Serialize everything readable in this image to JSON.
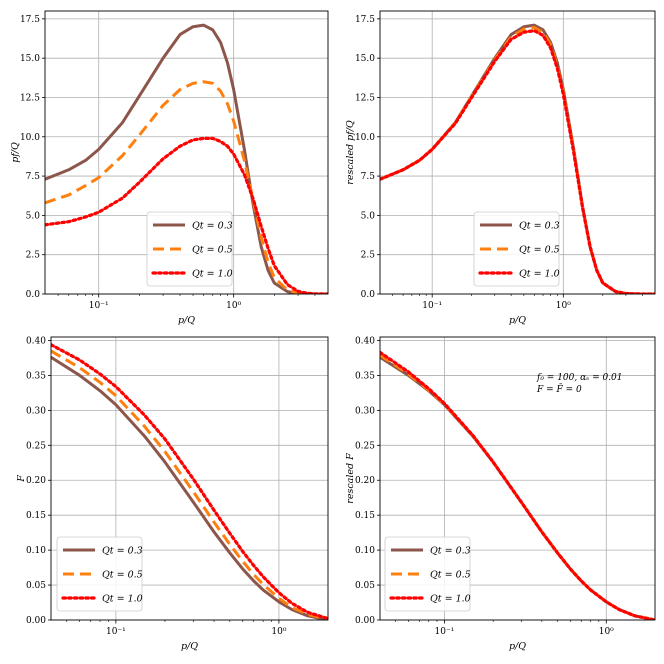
{
  "chart_data": [
    {
      "type": "line",
      "xlabel": "p/Q",
      "ylabel": "pf/Q",
      "xscale": "log",
      "xlim": [
        0.04,
        5.0
      ],
      "ylim": [
        0,
        18.0
      ],
      "yticks": [
        "0.0",
        "2.5",
        "5.0",
        "7.5",
        "10.0",
        "12.5",
        "15.0",
        "17.5"
      ],
      "ytick_values": [
        0,
        2.5,
        5,
        7.5,
        10,
        12.5,
        15,
        17.5
      ],
      "xticks": [
        {
          "value": 0.1,
          "label": "10⁻¹"
        },
        {
          "value": 1,
          "label": "10⁰"
        }
      ],
      "grid": true,
      "legend_position": "lower center",
      "x": [
        0.04,
        0.06,
        0.08,
        0.1,
        0.15,
        0.2,
        0.3,
        0.4,
        0.5,
        0.6,
        0.7,
        0.8,
        0.9,
        1.0,
        1.2,
        1.4,
        1.6,
        1.8,
        2.0,
        2.5,
        3.0,
        3.5,
        4.0,
        5.0
      ],
      "series": [
        {
          "name": "Qt = 0.3",
          "color": "#8c564b",
          "style": "solid",
          "values": [
            7.3,
            7.9,
            8.5,
            9.2,
            10.9,
            12.6,
            15.0,
            16.5,
            17.0,
            17.1,
            16.8,
            16.0,
            14.7,
            13.0,
            9.2,
            5.6,
            3.0,
            1.5,
            0.7,
            0.15,
            0.03,
            0.01,
            0.0,
            0.0
          ]
        },
        {
          "name": "Qt = 0.5",
          "color": "#ff7f0e",
          "style": "dashed",
          "values": [
            5.8,
            6.3,
            6.9,
            7.4,
            8.8,
            10.1,
            12.0,
            13.0,
            13.4,
            13.5,
            13.4,
            12.9,
            12.1,
            11.0,
            8.5,
            5.9,
            3.6,
            2.0,
            1.05,
            0.25,
            0.06,
            0.02,
            0.0,
            0.0
          ]
        },
        {
          "name": "Qt = 1.0",
          "color": "#ff0000",
          "style": "dotted",
          "values": [
            4.4,
            4.6,
            4.9,
            5.2,
            6.1,
            7.1,
            8.6,
            9.4,
            9.8,
            9.9,
            9.9,
            9.7,
            9.4,
            8.9,
            7.6,
            6.0,
            4.3,
            2.9,
            1.8,
            0.6,
            0.17,
            0.05,
            0.01,
            0.0
          ]
        }
      ]
    },
    {
      "type": "line",
      "xlabel": "p/Q",
      "ylabel": "rescaled pf/Q",
      "xscale": "log",
      "xlim": [
        0.04,
        5.0
      ],
      "ylim": [
        0,
        18.0
      ],
      "yticks": [
        "0.0",
        "2.5",
        "5.0",
        "7.5",
        "10.0",
        "12.5",
        "15.0",
        "17.5"
      ],
      "ytick_values": [
        0,
        2.5,
        5,
        7.5,
        10,
        12.5,
        15,
        17.5
      ],
      "xticks": [
        {
          "value": 0.1,
          "label": "10⁻¹"
        },
        {
          "value": 1,
          "label": "10⁰"
        }
      ],
      "grid": true,
      "legend_position": "lower center",
      "x": [
        0.04,
        0.06,
        0.08,
        0.1,
        0.15,
        0.2,
        0.3,
        0.4,
        0.5,
        0.6,
        0.7,
        0.8,
        0.9,
        1.0,
        1.2,
        1.4,
        1.6,
        1.8,
        2.0,
        2.5,
        3.0,
        3.5,
        4.0,
        5.0
      ],
      "series": [
        {
          "name": "Qt = 0.3",
          "color": "#8c564b",
          "style": "solid",
          "values": [
            7.3,
            7.9,
            8.5,
            9.2,
            10.9,
            12.6,
            15.0,
            16.5,
            17.0,
            17.1,
            16.8,
            16.0,
            14.7,
            13.0,
            9.2,
            5.6,
            3.0,
            1.5,
            0.7,
            0.15,
            0.03,
            0.01,
            0.0,
            0.0
          ]
        },
        {
          "name": "Qt = 0.5",
          "color": "#ff7f0e",
          "style": "dashed",
          "values": [
            7.3,
            7.9,
            8.5,
            9.2,
            10.9,
            12.55,
            14.9,
            16.35,
            16.85,
            16.95,
            16.65,
            15.85,
            14.5,
            12.85,
            9.1,
            5.55,
            3.0,
            1.5,
            0.7,
            0.15,
            0.03,
            0.01,
            0.0,
            0.0
          ]
        },
        {
          "name": "Qt = 1.0",
          "color": "#ff0000",
          "style": "dotted",
          "values": [
            7.3,
            7.9,
            8.5,
            9.2,
            10.85,
            12.5,
            14.8,
            16.2,
            16.65,
            16.75,
            16.45,
            15.65,
            14.35,
            12.7,
            9.0,
            5.5,
            3.0,
            1.5,
            0.7,
            0.16,
            0.03,
            0.01,
            0.0,
            0.0
          ]
        }
      ]
    },
    {
      "type": "line",
      "xlabel": "p/Q",
      "ylabel": "F",
      "xscale": "log",
      "xlim": [
        0.04,
        2.0
      ],
      "ylim": [
        0,
        0.405
      ],
      "yticks": [
        "0.00",
        "0.05",
        "0.10",
        "0.15",
        "0.20",
        "0.25",
        "0.30",
        "0.35",
        "0.40"
      ],
      "ytick_values": [
        0,
        0.05,
        0.1,
        0.15,
        0.2,
        0.25,
        0.3,
        0.35,
        0.4
      ],
      "xticks": [
        {
          "value": 0.1,
          "label": "10⁻¹"
        },
        {
          "value": 1,
          "label": "10⁰"
        }
      ],
      "grid": true,
      "legend_position": "lower left",
      "x": [
        0.04,
        0.06,
        0.08,
        0.1,
        0.15,
        0.2,
        0.3,
        0.4,
        0.5,
        0.6,
        0.7,
        0.8,
        1.0,
        1.2,
        1.5,
        2.0
      ],
      "series": [
        {
          "name": "Qt = 0.3",
          "color": "#8c564b",
          "style": "solid",
          "values": [
            0.376,
            0.35,
            0.328,
            0.308,
            0.263,
            0.226,
            0.168,
            0.126,
            0.096,
            0.073,
            0.056,
            0.043,
            0.026,
            0.015,
            0.006,
            0.0
          ]
        },
        {
          "name": "Qt = 0.5",
          "color": "#ff7f0e",
          "style": "dashed",
          "values": [
            0.385,
            0.361,
            0.34,
            0.321,
            0.277,
            0.241,
            0.183,
            0.14,
            0.108,
            0.084,
            0.065,
            0.051,
            0.031,
            0.018,
            0.008,
            0.001
          ]
        },
        {
          "name": "Qt = 1.0",
          "color": "#ff0000",
          "style": "dotted",
          "values": [
            0.394,
            0.372,
            0.352,
            0.334,
            0.293,
            0.259,
            0.201,
            0.157,
            0.124,
            0.098,
            0.078,
            0.062,
            0.039,
            0.024,
            0.011,
            0.002
          ]
        }
      ]
    },
    {
      "type": "line",
      "xlabel": "p/Q",
      "ylabel": "rescaled F",
      "xscale": "log",
      "xlim": [
        0.04,
        2.0
      ],
      "ylim": [
        0,
        0.405
      ],
      "yticks": [
        "0.00",
        "0.05",
        "0.10",
        "0.15",
        "0.20",
        "0.25",
        "0.30",
        "0.35",
        "0.40"
      ],
      "ytick_values": [
        0,
        0.05,
        0.1,
        0.15,
        0.2,
        0.25,
        0.3,
        0.35,
        0.4
      ],
      "xticks": [
        {
          "value": 0.1,
          "label": "10⁻¹"
        },
        {
          "value": 1,
          "label": "10⁰"
        }
      ],
      "grid": true,
      "legend_position": "lower left",
      "annotation": [
        "f₀ = 100, αₛ = 0.01",
        "F = F̄ = 0"
      ],
      "x": [
        0.04,
        0.06,
        0.08,
        0.1,
        0.15,
        0.2,
        0.3,
        0.4,
        0.5,
        0.6,
        0.7,
        0.8,
        1.0,
        1.2,
        1.5,
        2.0
      ],
      "series": [
        {
          "name": "Qt = 0.3",
          "color": "#8c564b",
          "style": "solid",
          "values": [
            0.376,
            0.35,
            0.328,
            0.308,
            0.263,
            0.226,
            0.168,
            0.126,
            0.096,
            0.073,
            0.056,
            0.043,
            0.026,
            0.015,
            0.006,
            0.0
          ]
        },
        {
          "name": "Qt = 0.5",
          "color": "#ff7f0e",
          "style": "dashed",
          "values": [
            0.379,
            0.352,
            0.329,
            0.309,
            0.264,
            0.226,
            0.168,
            0.126,
            0.096,
            0.073,
            0.056,
            0.043,
            0.026,
            0.015,
            0.006,
            0.0
          ]
        },
        {
          "name": "Qt = 1.0",
          "color": "#ff0000",
          "style": "dotted",
          "values": [
            0.383,
            0.355,
            0.331,
            0.31,
            0.264,
            0.226,
            0.168,
            0.126,
            0.096,
            0.073,
            0.056,
            0.043,
            0.026,
            0.015,
            0.006,
            0.0
          ]
        }
      ]
    }
  ]
}
